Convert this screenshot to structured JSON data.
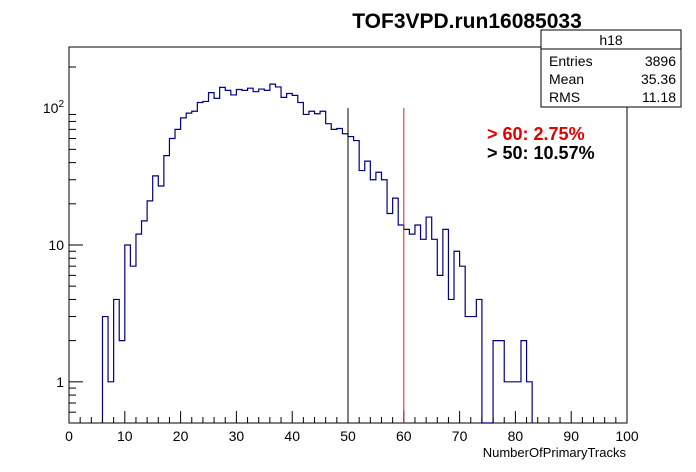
{
  "chart_data": {
    "type": "bar",
    "title": "TOF3VPD.run16085033",
    "xlabel": "NumberOfPrimaryTracks",
    "ylabel": "",
    "xlim": [
      0,
      100
    ],
    "ylim": [
      0.5,
      280
    ],
    "log_y": true,
    "grid": false,
    "bin_width": 1,
    "x_ticks": [
      0,
      10,
      20,
      30,
      40,
      50,
      60,
      70,
      80,
      90,
      100
    ],
    "y_ticks": [
      {
        "value": 1,
        "label": "1"
      },
      {
        "value": 10,
        "label": "10"
      },
      {
        "value": 100,
        "label": "10",
        "sup": "2"
      }
    ],
    "series": [
      {
        "color": "#000080",
        "x": [
          6,
          7,
          8,
          9,
          10,
          11,
          12,
          13,
          14,
          15,
          16,
          17,
          18,
          19,
          20,
          21,
          22,
          23,
          24,
          25,
          26,
          27,
          28,
          29,
          30,
          31,
          32,
          33,
          34,
          35,
          36,
          37,
          38,
          39,
          40,
          41,
          42,
          43,
          44,
          45,
          46,
          47,
          48,
          49,
          50,
          51,
          52,
          53,
          54,
          55,
          56,
          57,
          58,
          59,
          60,
          61,
          62,
          63,
          64,
          65,
          66,
          67,
          68,
          69,
          70,
          71,
          72,
          73,
          74,
          75,
          76,
          77,
          78,
          79,
          80,
          81,
          82
        ],
        "values": [
          3,
          1,
          4,
          2,
          10,
          7,
          12,
          15,
          21,
          32,
          27,
          45,
          60,
          70,
          85,
          92,
          95,
          110,
          112,
          130,
          118,
          142,
          135,
          125,
          137,
          135,
          140,
          132,
          138,
          135,
          150,
          143,
          120,
          128,
          124,
          110,
          90,
          95,
          91,
          95,
          77,
          70,
          71,
          65,
          62,
          58,
          35,
          41,
          30,
          34,
          30,
          17,
          22,
          14,
          13,
          12,
          14,
          11,
          16,
          11,
          6,
          13,
          4,
          9,
          7,
          3,
          3,
          4,
          0,
          0,
          2,
          2,
          1,
          1,
          1,
          2,
          1
        ]
      }
    ],
    "lines": [
      {
        "x": 50,
        "color": "#000000"
      },
      {
        "x": 60,
        "color": "#d42020"
      }
    ],
    "stats": {
      "name": "h18",
      "rows": [
        {
          "label": "Entries",
          "value": "3896"
        },
        {
          "label": "Mean",
          "value": "35.36"
        },
        {
          "label": "RMS",
          "value": "11.18"
        }
      ]
    },
    "annotations": [
      {
        "text": "> 60: 2.75%",
        "color": "#e00000"
      },
      {
        "text": "> 50: 10.57%",
        "color": "#000000"
      }
    ],
    "legend_placement": "top-right"
  }
}
